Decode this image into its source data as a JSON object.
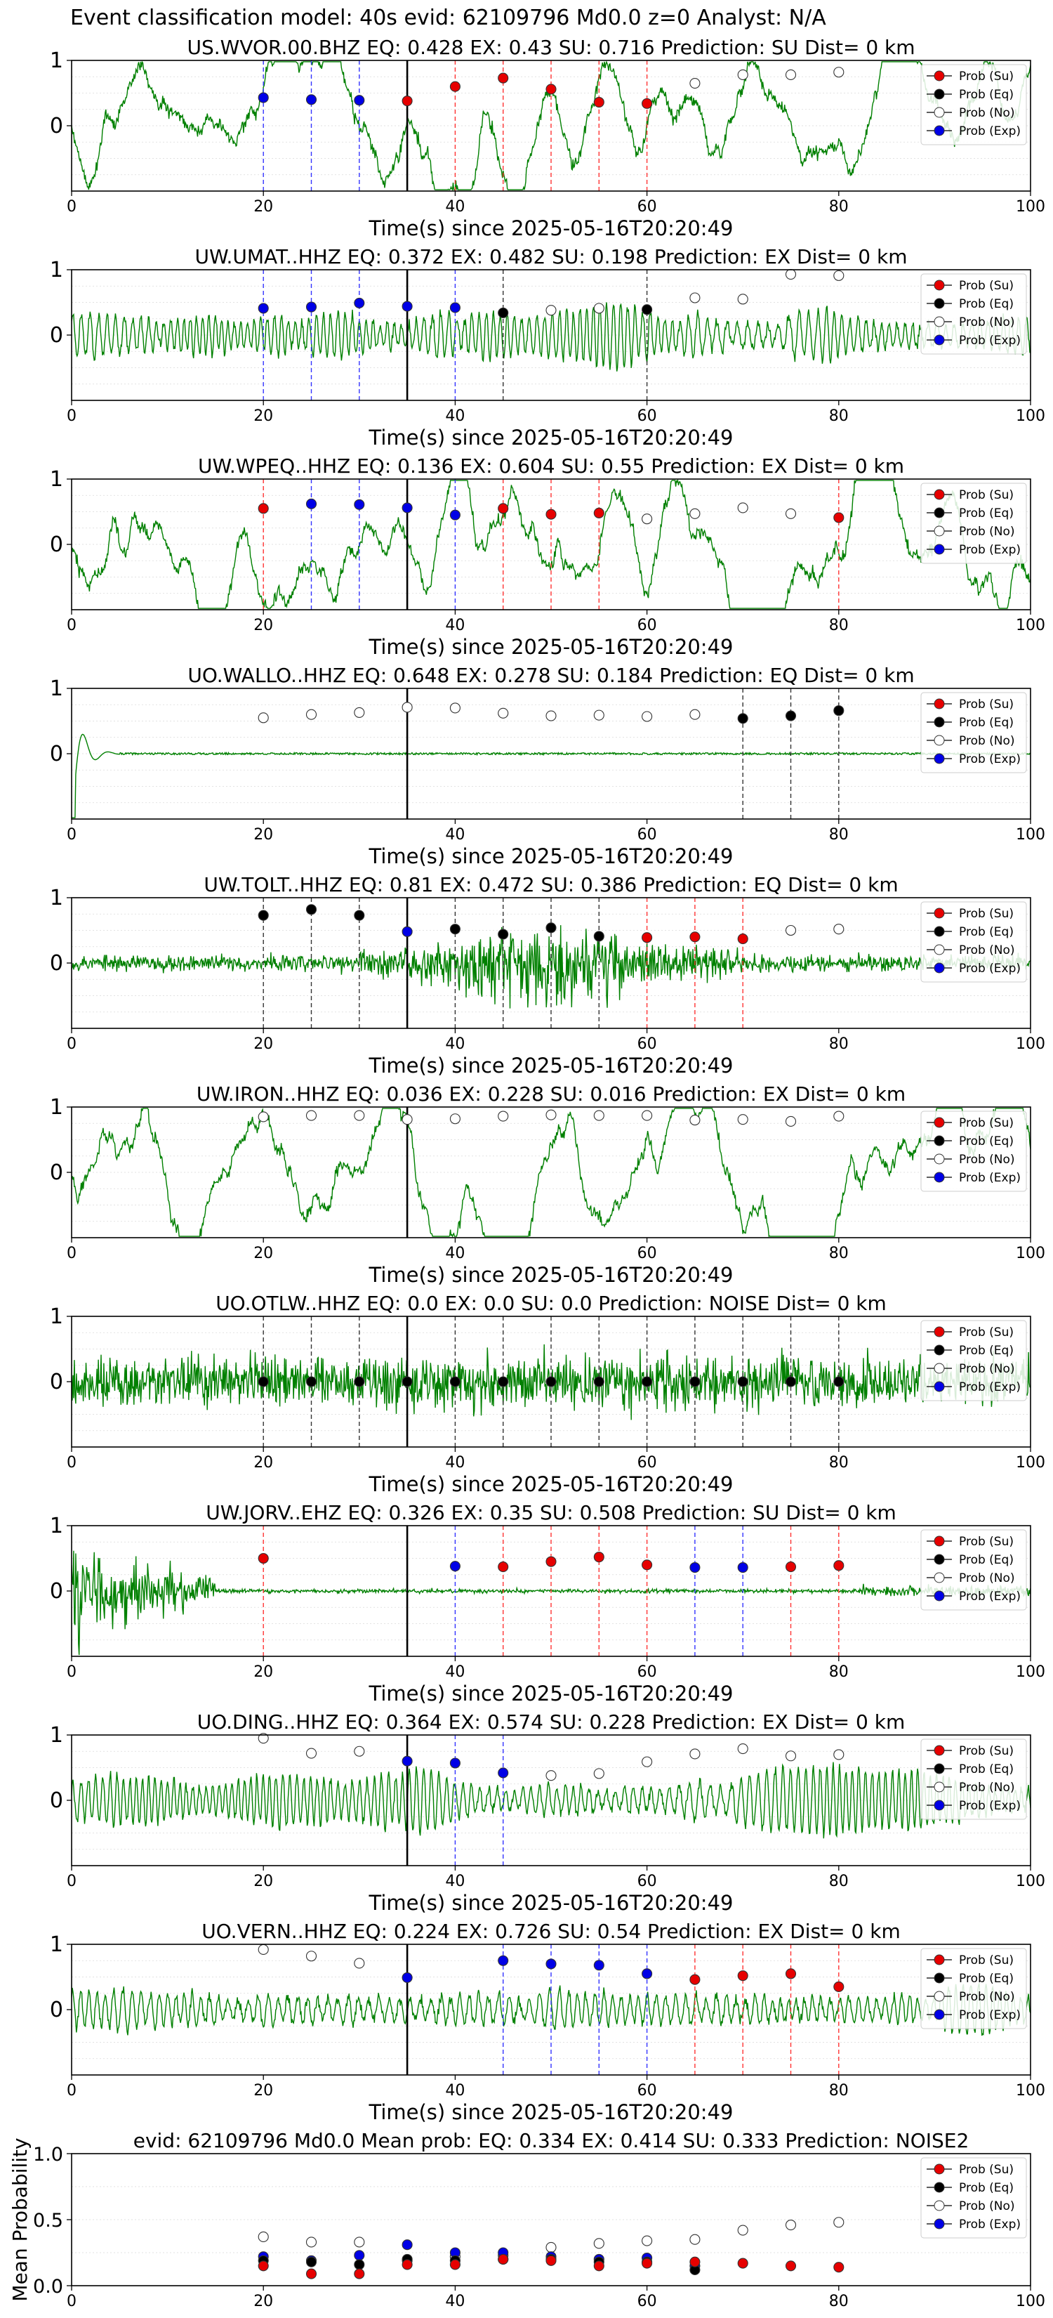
{
  "figure_title": "Event classification model: 40s evid: 62109796 Md0.0 z=0 Analyst: N/A",
  "legend_labels": [
    "Prob (Su)",
    "Prob (Eq)",
    "Prob (No)",
    "Prob (Exp)"
  ],
  "colors": {
    "Su": "#e60000",
    "Eq": "#000000",
    "No": "#ffffff",
    "Exp": "#0000e6",
    "waveform": "#008000",
    "onset": "#000000"
  },
  "chart_data": [
    {
      "type": "line",
      "title": "US.WVOR.00.BHZ   EQ: 0.428  EX: 0.43  SU: 0.716   Prediction: SU    Dist= 0 km",
      "xlabel": "Time(s) since 2025-05-16T20:20:49",
      "xlim": [
        0,
        100
      ],
      "ylim": [
        -1,
        1
      ],
      "xticks": [
        0,
        20,
        40,
        60,
        80,
        100
      ],
      "yticks": [
        0,
        1
      ],
      "onset": 35,
      "waveform": "noisy",
      "wave_amp": 0.45,
      "seed": 11,
      "points": [
        [
          20,
          "Exp",
          0.43
        ],
        [
          25,
          "Exp",
          0.4
        ],
        [
          30,
          "Exp",
          0.39
        ],
        [
          35,
          "Su",
          0.38
        ],
        [
          40,
          "Su",
          0.6
        ],
        [
          45,
          "Su",
          0.73
        ],
        [
          50,
          "Su",
          0.56
        ],
        [
          55,
          "Su",
          0.36
        ],
        [
          60,
          "Su",
          0.34
        ],
        [
          65,
          "No",
          0.65
        ],
        [
          70,
          "No",
          0.78
        ],
        [
          75,
          "No",
          0.78
        ],
        [
          80,
          "No",
          0.82
        ]
      ]
    },
    {
      "type": "line",
      "title": "UW.UMAT..HHZ   EQ: 0.372  EX: 0.482  SU: 0.198   Prediction: EX    Dist= 0 km",
      "xlabel": "Time(s) since 2025-05-16T20:20:49",
      "xlim": [
        0,
        100
      ],
      "ylim": [
        -1,
        1
      ],
      "xticks": [
        0,
        20,
        40,
        60,
        80,
        100
      ],
      "yticks": [
        0,
        1
      ],
      "onset": 35,
      "waveform": "oscillating",
      "wave_amp": 0.55,
      "seed": 23,
      "points": [
        [
          20,
          "Exp",
          0.41
        ],
        [
          25,
          "Exp",
          0.43
        ],
        [
          30,
          "Exp",
          0.49
        ],
        [
          35,
          "Exp",
          0.44
        ],
        [
          40,
          "Exp",
          0.42
        ],
        [
          45,
          "Eq",
          0.34
        ],
        [
          50,
          "No",
          0.38
        ],
        [
          55,
          "No",
          0.41
        ],
        [
          60,
          "Eq",
          0.39
        ],
        [
          65,
          "No",
          0.57
        ],
        [
          70,
          "No",
          0.55
        ],
        [
          75,
          "No",
          0.93
        ],
        [
          80,
          "No",
          0.91
        ]
      ]
    },
    {
      "type": "line",
      "title": "UW.WPEQ..HHZ   EQ: 0.136  EX: 0.604  SU: 0.55   Prediction: EX    Dist= 0 km",
      "xlabel": "Time(s) since 2025-05-16T20:20:49",
      "xlim": [
        0,
        100
      ],
      "ylim": [
        -1,
        1
      ],
      "xticks": [
        0,
        20,
        40,
        60,
        80,
        100
      ],
      "yticks": [
        0,
        1
      ],
      "onset": 35,
      "waveform": "noisy",
      "wave_amp": 0.5,
      "seed": 37,
      "points": [
        [
          20,
          "Su",
          0.55
        ],
        [
          25,
          "Exp",
          0.62
        ],
        [
          30,
          "Exp",
          0.61
        ],
        [
          35,
          "Exp",
          0.56
        ],
        [
          40,
          "Exp",
          0.45
        ],
        [
          45,
          "Su",
          0.55
        ],
        [
          50,
          "Su",
          0.46
        ],
        [
          55,
          "Su",
          0.48
        ],
        [
          60,
          "No",
          0.39
        ],
        [
          65,
          "No",
          0.47
        ],
        [
          70,
          "No",
          0.56
        ],
        [
          75,
          "No",
          0.47
        ],
        [
          80,
          "Su",
          0.41
        ]
      ]
    },
    {
      "type": "line",
      "title": "UO.WALLO..HHZ   EQ: 0.648  EX: 0.278  SU: 0.184   Prediction: EQ    Dist= 0 km",
      "xlabel": "Time(s) since 2025-05-16T20:20:49",
      "xlim": [
        0,
        100
      ],
      "ylim": [
        -1,
        1
      ],
      "xticks": [
        0,
        20,
        40,
        60,
        80,
        100
      ],
      "yticks": [
        0,
        1
      ],
      "onset": 35,
      "waveform": "flat",
      "wave_amp": 0.02,
      "seed": 41,
      "points": [
        [
          20,
          "No",
          0.55
        ],
        [
          25,
          "No",
          0.6
        ],
        [
          30,
          "No",
          0.63
        ],
        [
          35,
          "No",
          0.71
        ],
        [
          40,
          "No",
          0.7
        ],
        [
          45,
          "No",
          0.62
        ],
        [
          50,
          "No",
          0.58
        ],
        [
          55,
          "No",
          0.59
        ],
        [
          60,
          "No",
          0.57
        ],
        [
          65,
          "No",
          0.6
        ],
        [
          70,
          "Eq",
          0.54
        ],
        [
          75,
          "Eq",
          0.58
        ],
        [
          80,
          "Eq",
          0.66
        ]
      ]
    },
    {
      "type": "line",
      "title": "UW.TOLT..HHZ   EQ: 0.81  EX: 0.472  SU: 0.386   Prediction: EQ    Dist= 0 km",
      "xlabel": "Time(s) since 2025-05-16T20:20:49",
      "xlim": [
        0,
        100
      ],
      "ylim": [
        -1,
        1
      ],
      "xticks": [
        0,
        20,
        40,
        60,
        80,
        100
      ],
      "yticks": [
        0,
        1
      ],
      "onset": 35,
      "waveform": "burst",
      "wave_amp": 0.7,
      "seed": 53,
      "points": [
        [
          20,
          "Eq",
          0.73
        ],
        [
          25,
          "Eq",
          0.82
        ],
        [
          30,
          "Eq",
          0.73
        ],
        [
          35,
          "Exp",
          0.48
        ],
        [
          40,
          "Eq",
          0.52
        ],
        [
          45,
          "Eq",
          0.44
        ],
        [
          50,
          "Eq",
          0.54
        ],
        [
          55,
          "Eq",
          0.41
        ],
        [
          60,
          "Su",
          0.39
        ],
        [
          65,
          "Su",
          0.4
        ],
        [
          70,
          "Su",
          0.37
        ],
        [
          75,
          "No",
          0.5
        ],
        [
          80,
          "No",
          0.52
        ]
      ]
    },
    {
      "type": "line",
      "title": "UW.IRON..HHZ   EQ: 0.036  EX: 0.228  SU: 0.016   Prediction: EX    Dist= 0 km",
      "xlabel": "Time(s) since 2025-05-16T20:20:49",
      "xlim": [
        0,
        100
      ],
      "ylim": [
        -1,
        1
      ],
      "xticks": [
        0,
        20,
        40,
        60,
        80,
        100
      ],
      "yticks": [
        0,
        1
      ],
      "onset": 35,
      "waveform": "noisy",
      "wave_amp": 0.6,
      "seed": 67,
      "points": [
        [
          20,
          "No",
          0.85
        ],
        [
          25,
          "No",
          0.87
        ],
        [
          30,
          "No",
          0.87
        ],
        [
          35,
          "No",
          0.81
        ],
        [
          40,
          "No",
          0.82
        ],
        [
          45,
          "No",
          0.86
        ],
        [
          50,
          "No",
          0.88
        ],
        [
          55,
          "No",
          0.87
        ],
        [
          60,
          "No",
          0.87
        ],
        [
          65,
          "No",
          0.8
        ],
        [
          70,
          "No",
          0.81
        ],
        [
          75,
          "No",
          0.78
        ],
        [
          80,
          "No",
          0.86
        ]
      ]
    },
    {
      "type": "line",
      "title": "UO.OTLW..HHZ   EQ: 0.0  EX: 0.0  SU: 0.0   Prediction: NOISE    Dist= 0 km",
      "xlabel": "Time(s) since 2025-05-16T20:20:49",
      "xlim": [
        0,
        100
      ],
      "ylim": [
        -1,
        1
      ],
      "xticks": [
        0,
        20,
        40,
        60,
        80,
        100
      ],
      "yticks": [
        0,
        1
      ],
      "onset": 35,
      "waveform": "dense",
      "wave_amp": 0.7,
      "seed": 79,
      "points": [
        [
          20,
          "Eq",
          0.0
        ],
        [
          25,
          "Eq",
          0.0
        ],
        [
          30,
          "Eq",
          0.0
        ],
        [
          35,
          "Eq",
          0.0
        ],
        [
          40,
          "Eq",
          0.0
        ],
        [
          45,
          "Eq",
          0.0
        ],
        [
          50,
          "Eq",
          0.0
        ],
        [
          55,
          "Eq",
          0.0
        ],
        [
          60,
          "Eq",
          0.0
        ],
        [
          65,
          "Eq",
          0.0
        ],
        [
          70,
          "Eq",
          0.0
        ],
        [
          75,
          "Eq",
          0.0
        ],
        [
          80,
          "Eq",
          0.0
        ]
      ]
    },
    {
      "type": "line",
      "title": "UW.JORV..EHZ   EQ: 0.326  EX: 0.35  SU: 0.508   Prediction: SU    Dist= 0 km",
      "xlabel": "Time(s) since 2025-05-16T20:20:49",
      "xlim": [
        0,
        100
      ],
      "ylim": [
        -1,
        1
      ],
      "xticks": [
        0,
        20,
        40,
        60,
        80,
        100
      ],
      "yticks": [
        0,
        1
      ],
      "onset": 35,
      "waveform": "decay",
      "wave_amp": 0.5,
      "seed": 83,
      "points": [
        [
          20,
          "Su",
          0.5
        ],
        [
          40,
          "Exp",
          0.38
        ],
        [
          45,
          "Su",
          0.37
        ],
        [
          50,
          "Su",
          0.45
        ],
        [
          55,
          "Su",
          0.52
        ],
        [
          60,
          "Su",
          0.4
        ],
        [
          65,
          "Exp",
          0.36
        ],
        [
          70,
          "Exp",
          0.36
        ],
        [
          75,
          "Su",
          0.37
        ],
        [
          80,
          "Su",
          0.39
        ]
      ]
    },
    {
      "type": "line",
      "title": "UO.DING..HHZ   EQ: 0.364  EX: 0.574  SU: 0.228   Prediction: EX    Dist= 0 km",
      "xlabel": "Time(s) since 2025-05-16T20:20:49",
      "xlim": [
        0,
        100
      ],
      "ylim": [
        -1,
        1
      ],
      "xticks": [
        0,
        20,
        40,
        60,
        80,
        100
      ],
      "yticks": [
        0,
        1
      ],
      "onset": 35,
      "waveform": "oscillating",
      "wave_amp": 0.55,
      "seed": 97,
      "points": [
        [
          20,
          "No",
          0.95
        ],
        [
          25,
          "No",
          0.72
        ],
        [
          30,
          "No",
          0.75
        ],
        [
          35,
          "Exp",
          0.6
        ],
        [
          40,
          "Exp",
          0.57
        ],
        [
          45,
          "Exp",
          0.42
        ],
        [
          50,
          "No",
          0.38
        ],
        [
          55,
          "No",
          0.41
        ],
        [
          60,
          "No",
          0.59
        ],
        [
          65,
          "No",
          0.71
        ],
        [
          70,
          "No",
          0.79
        ],
        [
          75,
          "No",
          0.68
        ],
        [
          80,
          "No",
          0.7
        ]
      ]
    },
    {
      "type": "line",
      "title": "UO.VERN..HHZ   EQ: 0.224  EX: 0.726  SU: 0.54   Prediction: EX    Dist= 0 km",
      "xlabel": "Time(s) since 2025-05-16T20:20:49",
      "xlim": [
        0,
        100
      ],
      "ylim": [
        -1,
        1
      ],
      "xticks": [
        0,
        20,
        40,
        60,
        80,
        100
      ],
      "yticks": [
        0,
        1
      ],
      "onset": 35,
      "waveform": "oscillating",
      "wave_amp": 0.55,
      "seed": 101,
      "points": [
        [
          20,
          "No",
          0.92
        ],
        [
          25,
          "No",
          0.82
        ],
        [
          30,
          "No",
          0.71
        ],
        [
          35,
          "Exp",
          0.49
        ],
        [
          45,
          "Exp",
          0.75
        ],
        [
          50,
          "Exp",
          0.7
        ],
        [
          55,
          "Exp",
          0.68
        ],
        [
          60,
          "Exp",
          0.55
        ],
        [
          65,
          "Su",
          0.46
        ],
        [
          70,
          "Su",
          0.52
        ],
        [
          75,
          "Su",
          0.55
        ],
        [
          80,
          "Su",
          0.35
        ]
      ]
    },
    {
      "type": "scatter",
      "title": "evid: 62109796  Md0.0   Mean prob:   EQ: 0.334  EX: 0.414  SU: 0.333   Prediction: NOISE2",
      "xlabel": "",
      "ylabel": "Mean Probability",
      "xlim": [
        0,
        100
      ],
      "ylim": [
        0,
        1
      ],
      "xticks": [
        0,
        20,
        40,
        60,
        80,
        100
      ],
      "yticks": [
        0.0,
        0.5,
        1.0
      ],
      "points": [
        [
          20,
          "No",
          0.37
        ],
        [
          25,
          "No",
          0.33
        ],
        [
          30,
          "No",
          0.33
        ],
        [
          35,
          "No",
          0.19
        ],
        [
          40,
          "No",
          0.22
        ],
        [
          45,
          "No",
          0.23
        ],
        [
          50,
          "No",
          0.29
        ],
        [
          55,
          "No",
          0.32
        ],
        [
          60,
          "No",
          0.34
        ],
        [
          65,
          "No",
          0.35
        ],
        [
          70,
          "No",
          0.42
        ],
        [
          75,
          "No",
          0.46
        ],
        [
          80,
          "No",
          0.48
        ],
        [
          20,
          "Exp",
          0.22
        ],
        [
          25,
          "Exp",
          0.19
        ],
        [
          30,
          "Exp",
          0.23
        ],
        [
          35,
          "Exp",
          0.31
        ],
        [
          40,
          "Exp",
          0.25
        ],
        [
          45,
          "Exp",
          0.25
        ],
        [
          50,
          "Exp",
          0.22
        ],
        [
          55,
          "Exp",
          0.2
        ],
        [
          60,
          "Exp",
          0.21
        ],
        [
          65,
          "Exp",
          0.15
        ],
        [
          20,
          "Eq",
          0.19
        ],
        [
          25,
          "Eq",
          0.18
        ],
        [
          30,
          "Eq",
          0.16
        ],
        [
          35,
          "Eq",
          0.2
        ],
        [
          40,
          "Eq",
          0.19
        ],
        [
          45,
          "Eq",
          0.2
        ],
        [
          50,
          "Eq",
          0.2
        ],
        [
          55,
          "Eq",
          0.18
        ],
        [
          60,
          "Eq",
          0.18
        ],
        [
          65,
          "Eq",
          0.12
        ],
        [
          20,
          "Su",
          0.15
        ],
        [
          25,
          "Su",
          0.09
        ],
        [
          30,
          "Su",
          0.09
        ],
        [
          35,
          "Su",
          0.16
        ],
        [
          40,
          "Su",
          0.16
        ],
        [
          45,
          "Su",
          0.2
        ],
        [
          50,
          "Su",
          0.19
        ],
        [
          55,
          "Su",
          0.15
        ],
        [
          60,
          "Su",
          0.17
        ],
        [
          65,
          "Su",
          0.18
        ],
        [
          70,
          "Su",
          0.17
        ],
        [
          75,
          "Su",
          0.15
        ],
        [
          80,
          "Su",
          0.14
        ]
      ]
    }
  ]
}
